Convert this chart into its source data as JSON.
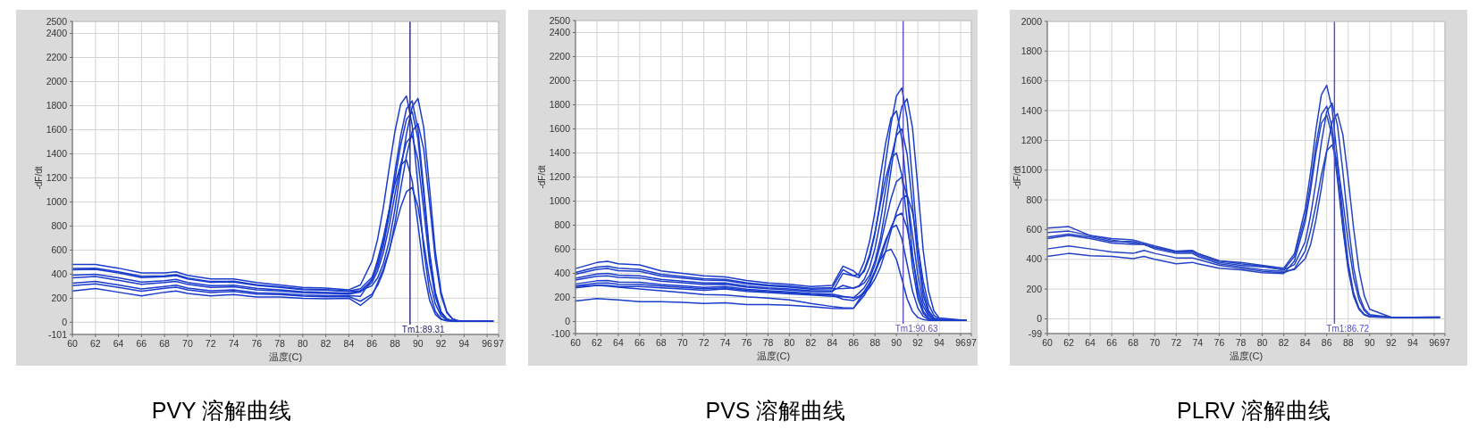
{
  "chart_data": [
    {
      "type": "line",
      "title": "PVY 溶解曲线",
      "xlabel": "温度(C)",
      "ylabel": "-dF/dt",
      "xlim": [
        60,
        97
      ],
      "xticks": [
        60,
        62,
        64,
        66,
        68,
        70,
        72,
        74,
        76,
        78,
        80,
        82,
        84,
        86,
        88,
        90,
        92,
        94,
        96,
        97
      ],
      "ylim": [
        -101,
        2500
      ],
      "yticks": [
        -101,
        0,
        200,
        400,
        600,
        800,
        1000,
        1200,
        1400,
        1600,
        1800,
        2000,
        2200,
        2400,
        2500
      ],
      "grid": true,
      "line_style": "solid",
      "ref_lines": [
        {
          "axis": "x",
          "value": 89.31,
          "label": "Tm1:89.31",
          "color": "#24246e"
        }
      ],
      "x": [
        60,
        62,
        64,
        66,
        68,
        69,
        70,
        72,
        74,
        76,
        78,
        80,
        82,
        84,
        85,
        86,
        86.5,
        87,
        87.5,
        88,
        88.5,
        89,
        89.5,
        90,
        90.5,
        91,
        91.5,
        92,
        92.5,
        93,
        93.5,
        94,
        96.5
      ],
      "series": [
        {
          "color": "#1a3ccc",
          "values": [
            480,
            480,
            450,
            410,
            410,
            420,
            390,
            360,
            360,
            330,
            310,
            290,
            285,
            270,
            310,
            506,
            692,
            958,
            1280,
            1585,
            1813,
            1880,
            1636,
            1132,
            601,
            258,
            92,
            29,
            13,
            10,
            10,
            10,
            10
          ]
        },
        {
          "color": "#1a3ccc",
          "values": [
            436,
            440,
            410,
            372,
            378,
            388,
            360,
            332,
            334,
            306,
            290,
            272,
            267,
            256,
            263,
            304,
            370,
            490,
            676,
            940,
            1262,
            1565,
            1792,
            1860,
            1619,
            1121,
            595,
            254,
            89,
            29,
            13,
            10,
            10
          ]
        },
        {
          "color": "#1a3ccc",
          "values": [
            392,
            400,
            370,
            334,
            346,
            356,
            330,
            304,
            308,
            282,
            270,
            254,
            249,
            242,
            260,
            350,
            462,
            637,
            886,
            1188,
            1472,
            1686,
            1750,
            1524,
            1055,
            560,
            239,
            84,
            28,
            12,
            10,
            10,
            10
          ]
        },
        {
          "color": "#1a3ccc",
          "values": [
            370,
            380,
            350,
            315,
            330,
            340,
            315,
            290,
            295,
            270,
            260,
            245,
            240,
            235,
            251,
            330,
            428,
            581,
            799,
            1062,
            1311,
            1496,
            1550,
            1347,
            933,
            496,
            212,
            75,
            26,
            12,
            10,
            10,
            10
          ]
        },
        {
          "color": "#1a3ccc",
          "values": [
            326,
            340,
            310,
            277,
            298,
            308,
            285,
            262,
            269,
            246,
            240,
            227,
            222,
            221,
            215,
            360,
            520,
            707,
            933,
            1147,
            1306,
            1350,
            1173,
            811,
            432,
            185,
            67,
            24,
            12,
            10,
            10,
            10,
            10
          ]
        },
        {
          "color": "#1a3ccc",
          "values": [
            260,
            280,
            250,
            220,
            250,
            260,
            240,
            220,
            230,
            210,
            210,
            200,
            195,
            200,
            140,
            217,
            328,
            445,
            598,
            782,
            956,
            1085,
            1120,
            960,
            664,
            353,
            154,
            56,
            21,
            11,
            10,
            10,
            10
          ]
        },
        {
          "color": "#1a3ccc",
          "values": [
            447,
            450,
            420,
            382,
            386,
            396,
            368,
            339,
            341,
            312,
            295,
            277,
            272,
            260,
            279,
            373,
            491,
            675,
            935,
            1251,
            1550,
            1774,
            1840,
            1601,
            1108,
            589,
            252,
            88,
            29,
            12,
            10,
            10,
            10
          ]
        },
        {
          "color": "#1a3ccc",
          "values": [
            304,
            320,
            290,
            258,
            282,
            292,
            270,
            248,
            256,
            234,
            230,
            218,
            213,
            214,
            175,
            233,
            307,
            422,
            589,
            826,
            1112,
            1384,
            1588,
            1650,
            1437,
            995,
            528,
            225,
            79,
            27,
            12,
            10,
            10
          ]
        }
      ]
    },
    {
      "type": "line",
      "title": "PVS 溶解曲线",
      "xlabel": "温度(C)",
      "ylabel": "-dF/dt",
      "xlim": [
        60,
        97
      ],
      "xticks": [
        60,
        62,
        64,
        66,
        68,
        70,
        72,
        74,
        76,
        78,
        80,
        82,
        84,
        86,
        88,
        90,
        92,
        94,
        96,
        97
      ],
      "ylim": [
        -100,
        2500
      ],
      "yticks": [
        -100,
        0,
        200,
        400,
        600,
        800,
        1000,
        1200,
        1400,
        1600,
        1800,
        2000,
        2200,
        2400,
        2500
      ],
      "grid": true,
      "line_style": "solid",
      "ref_lines": [
        {
          "axis": "x",
          "value": 90.63,
          "label": "Tm1:90.63",
          "color": "#5a50b8"
        }
      ],
      "x": [
        60,
        62,
        63,
        64,
        66,
        68,
        70,
        72,
        74,
        76,
        78,
        80,
        82,
        84,
        85,
        86,
        86.5,
        87,
        87.5,
        88,
        88.5,
        89,
        89.5,
        90,
        90.5,
        91,
        91.5,
        92,
        92.5,
        93,
        93.5,
        94,
        96.5
      ],
      "series": [
        {
          "color": "#1a3ccc",
          "values": [
            440,
            490,
            500,
            480,
            470,
            420,
            400,
            380,
            370,
            340,
            320,
            310,
            290,
            300,
            460,
            420,
            380,
            418,
            537,
            733,
            1004,
            1332,
            1642,
            1873,
            1940,
            1686,
            1167,
            621,
            266,
            94,
            30,
            12,
            10
          ]
        },
        {
          "color": "#1a3ccc",
          "values": [
            392,
            433,
            440,
            423,
            416,
            378,
            361,
            344,
            340,
            313,
            296,
            286,
            269,
            273,
            275,
            280,
            292,
            321,
            386,
            504,
            688,
            949,
            1264,
            1562,
            1785,
            1850,
            1609,
            1114,
            592,
            253,
            89,
            29,
            10
          ]
        },
        {
          "color": "#1a3ccc",
          "values": [
            360,
            395,
            400,
            385,
            380,
            350,
            335,
            320,
            320,
            295,
            280,
            270,
            255,
            255,
            300,
            276,
            296,
            352,
            454,
            610,
            834,
            1102,
            1357,
            1546,
            1600,
            1389,
            962,
            512,
            219,
            78,
            26,
            11,
            10
          ]
        },
        {
          "color": "#1a3ccc",
          "values": [
            344,
            376,
            380,
            366,
            362,
            336,
            322,
            308,
            310,
            286,
            272,
            262,
            248,
            246,
            400,
            380,
            364,
            432,
            559,
            745,
            976,
            1194,
            1356,
            1400,
            1216,
            841,
            448,
            192,
            68,
            24,
            11,
            10,
            10
          ]
        },
        {
          "color": "#1a3ccc",
          "values": [
            312,
            338,
            340,
            328,
            326,
            308,
            296,
            284,
            290,
            268,
            256,
            246,
            234,
            228,
            210,
            195,
            210,
            236,
            282,
            354,
            451,
            589,
            753,
            909,
            1022,
            1050,
            908,
            628,
            336,
            144,
            53,
            20,
            10
          ]
        },
        {
          "color": "#1a3ccc",
          "values": [
            296,
            319,
            320,
            309,
            308,
            294,
            283,
            272,
            280,
            259,
            248,
            238,
            227,
            219,
            185,
            175,
            202,
            252,
            322,
            406,
            521,
            657,
            785,
            878,
            900,
            776,
            537,
            288,
            125,
            46,
            19,
            10,
            10
          ]
        },
        {
          "color": "#1a3ccc",
          "values": [
            290,
            300,
            295,
            285,
            270,
            255,
            240,
            225,
            220,
            205,
            195,
            180,
            150,
            125,
            115,
            112,
            164,
            218,
            300,
            413,
            551,
            680,
            775,
            800,
            689,
            476,
            253,
            112,
            43,
            18,
            10,
            10,
            10
          ]
        },
        {
          "color": "#1a3ccc",
          "values": [
            170,
            190,
            185,
            180,
            165,
            165,
            160,
            150,
            155,
            140,
            140,
            135,
            125,
            110,
            108,
            110,
            182,
            241,
            323,
            422,
            513,
            582,
            600,
            515,
            355,
            189,
            84,
            34,
            16,
            10,
            10,
            10,
            10
          ]
        },
        {
          "color": "#1a3ccc",
          "values": [
            408,
            452,
            460,
            442,
            434,
            392,
            374,
            356,
            350,
            322,
            304,
            294,
            276,
            282,
            430,
            380,
            396,
            499,
            670,
            914,
            1207,
            1484,
            1691,
            1750,
            1520,
            1051,
            560,
            240,
            85,
            28,
            12,
            10,
            10
          ]
        },
        {
          "color": "#1a3ccc",
          "values": [
            280,
            300,
            300,
            290,
            290,
            280,
            270,
            260,
            270,
            250,
            240,
            230,
            220,
            210,
            205,
            200,
            236,
            282,
            358,
            474,
            638,
            836,
            1023,
            1162,
            1200,
            1041,
            721,
            384,
            165,
            59,
            22,
            10,
            10
          ]
        }
      ]
    },
    {
      "type": "line",
      "title": "PLRV 溶解曲线",
      "xlabel": "温度(C)",
      "ylabel": "-dF/dt",
      "xlim": [
        60,
        97
      ],
      "xticks": [
        60,
        62,
        64,
        66,
        68,
        70,
        72,
        74,
        76,
        78,
        80,
        82,
        84,
        86,
        88,
        90,
        92,
        94,
        96,
        97
      ],
      "ylim": [
        -99,
        2000
      ],
      "yticks": [
        -99,
        0,
        200,
        400,
        600,
        800,
        1000,
        1200,
        1400,
        1600,
        1800,
        2000
      ],
      "grid": true,
      "line_style": "solid",
      "ref_lines": [
        {
          "axis": "x",
          "value": 86.72,
          "label": "Tm1:86.72",
          "color": "#4a4ae0"
        }
      ],
      "x": [
        60,
        62,
        64,
        66,
        68,
        69,
        70,
        72,
        73.5,
        74,
        76,
        78,
        80,
        82,
        83,
        84,
        84.5,
        85,
        85.5,
        86,
        86.5,
        87,
        87.5,
        88,
        88.5,
        89,
        89.5,
        90,
        92,
        94,
        96.5
      ],
      "series": [
        {
          "color": "#2443c4",
          "values": [
            550,
            570,
            550,
            520,
            520,
            500,
            480,
            450,
            460,
            440,
            390,
            380,
            360,
            340,
            438,
            740,
            986,
            1274,
            1506,
            1570,
            1412,
            1075,
            696,
            377,
            175,
            72,
            30,
            15,
            10,
            10,
            12
          ]
        },
        {
          "color": "#2443c4",
          "values": [
            610,
            620,
            560,
            540,
            530,
            510,
            490,
            455,
            460,
            440,
            390,
            370,
            355,
            330,
            419,
            689,
            909,
            1167,
            1374,
            1430,
            1284,
            977,
            632,
            342,
            159,
            66,
            28,
            14,
            10,
            10,
            10
          ]
        },
        {
          "color": "#2443c4",
          "values": [
            580,
            590,
            560,
            530,
            510,
            500,
            480,
            450,
            450,
            430,
            380,
            360,
            350,
            330,
            365,
            519,
            695,
            919,
            1182,
            1393,
            1450,
            1302,
            991,
            642,
            347,
            161,
            67,
            28,
            10,
            10,
            12
          ]
        },
        {
          "color": "#2443c4",
          "values": [
            540,
            560,
            540,
            510,
            500,
            500,
            470,
            440,
            440,
            420,
            370,
            350,
            330,
            320,
            331,
            405,
            499,
            666,
            878,
            1127,
            1327,
            1380,
            1239,
            943,
            610,
            331,
            154,
            64,
            10,
            10,
            10
          ]
        },
        {
          "color": "#2443c4",
          "values": [
            470,
            490,
            470,
            450,
            440,
            460,
            440,
            410,
            410,
            400,
            360,
            340,
            320,
            310,
            337,
            457,
            594,
            766,
            968,
            1130,
            1170,
            1047,
            796,
            515,
            279,
            130,
            55,
            22,
            10,
            10,
            10
          ]
        },
        {
          "color": "#2443c4",
          "values": [
            420,
            440,
            425,
            420,
            405,
            420,
            400,
            370,
            380,
            370,
            340,
            330,
            310,
            305,
            390,
            653,
            865,
            1115,
            1316,
            1370,
            1231,
            937,
            607,
            329,
            153,
            64,
            26,
            13,
            10,
            10,
            10
          ]
        }
      ]
    }
  ]
}
